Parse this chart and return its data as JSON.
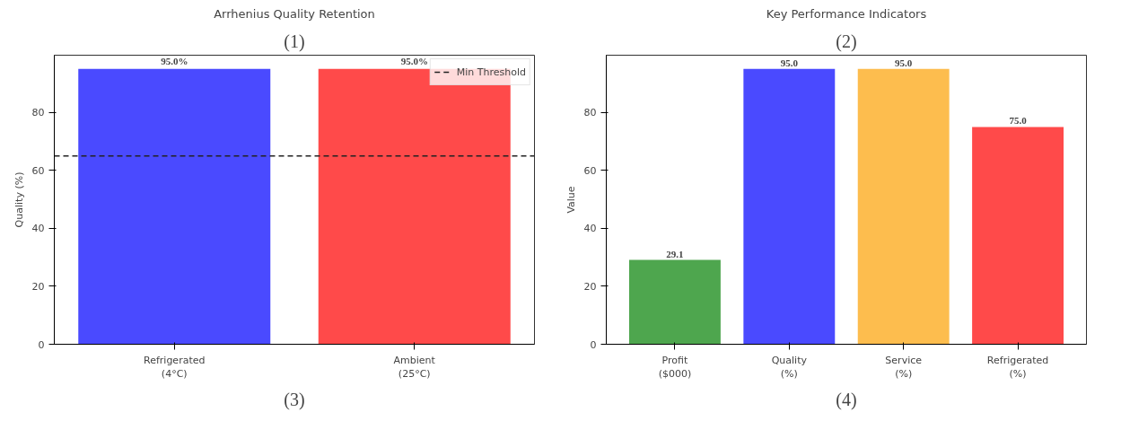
{
  "chart_data": [
    {
      "type": "bar",
      "title": "Arrhenius Quality Retention",
      "ylabel": "Quality (%)",
      "annotations": [
        "(1)",
        "(3)"
      ],
      "categories": [
        "Refrigerated\n(4°C)",
        "Ambient\n(25°C)"
      ],
      "values": [
        95,
        95
      ],
      "colors": [
        "#4a4aff",
        "#ff4a4a"
      ],
      "value_labels": [
        "95.0%",
        "95.0%"
      ],
      "ylim": [
        0,
        99.75
      ],
      "yticks": [
        0,
        20,
        40,
        60,
        80
      ],
      "ref_lines": [
        {
          "axis": "y",
          "value": 65,
          "label": "Min Threshold",
          "color": "#222222",
          "line_style": "dashed"
        }
      ],
      "legend": "top right",
      "grid": false
    },
    {
      "type": "bar",
      "title": "Key Performance Indicators",
      "ylabel": "Value",
      "annotations": [
        "(2)",
        "(4)"
      ],
      "categories": [
        "Profit\n($000)",
        "Quality\n(%)",
        "Service\n(%)",
        "Refrigerated\n(%)"
      ],
      "values": [
        29.1,
        95,
        95,
        75
      ],
      "colors": [
        "#4ea64e",
        "#4a4aff",
        "#fdbd4e",
        "#ff4a4a"
      ],
      "value_labels": [
        "29.1",
        "95.0",
        "95.0",
        "75.0"
      ],
      "ylim": [
        0,
        99.75
      ],
      "yticks": [
        0,
        20,
        40,
        60,
        80
      ],
      "grid": false
    }
  ]
}
